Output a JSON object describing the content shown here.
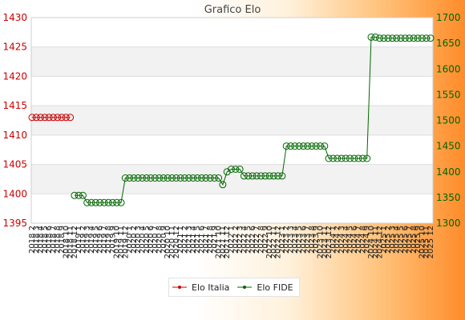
{
  "chart_data": {
    "type": "line",
    "title": "Grafico Elo",
    "y_left": {
      "ylim": [
        1395,
        1430
      ],
      "ticks": [
        "1395",
        "1400",
        "1405",
        "1410",
        "1415",
        "1420",
        "1425",
        "1430"
      ],
      "color": "#cc0000"
    },
    "y_right": {
      "ylim": [
        1300,
        1700
      ],
      "ticks": [
        "1300",
        "1350",
        "1400",
        "1450",
        "1500",
        "1550",
        "1600",
        "1650",
        "1700"
      ],
      "color": "#006600"
    },
    "x_ticks": [
      "2018 2",
      "2018 3",
      "2018 4",
      "2018 5",
      "2018 6",
      "2018 7",
      "2018 8",
      "2018 9",
      "2018 10",
      "2018 11",
      "2018 12",
      "2019 1",
      "2019 2",
      "2019 3",
      "2019 4",
      "2019 5",
      "2019 6",
      "2019 7",
      "2019 8",
      "2019 9",
      "2019 10",
      "2019 11",
      "2019 12",
      "2020 1",
      "2020 2",
      "2020 3",
      "2020 4",
      "2020 5",
      "2020 6",
      "2020 7",
      "2020 8",
      "2020 9",
      "2020 10",
      "2020 11",
      "2020 12",
      "2021 1",
      "2021 2",
      "2021 3",
      "2021 4",
      "2021 5",
      "2021 6",
      "2021 7",
      "2021 8",
      "2021 9",
      "2021 10",
      "2021 11",
      "2021 12",
      "2022 1",
      "2022 2",
      "2022 3",
      "2022 4",
      "2022 5",
      "2022 6",
      "2022 7",
      "2022 8",
      "2022 9",
      "2022 10",
      "2022 11",
      "2022 12",
      "2023 1",
      "2023 2",
      "2023 3",
      "2023 4",
      "2023 5",
      "2023 6",
      "2023 7",
      "2023 8",
      "2023 9",
      "2023 10",
      "2023 11",
      "2023 12",
      "2024 1",
      "2024 2",
      "2024 3",
      "2024 4",
      "2024 5",
      "2024 6",
      "2024 7",
      "2024 8",
      "2024 9",
      "2024 10",
      "2024 11",
      "2024 12",
      "2025 1",
      "2025 2",
      "2025 3",
      "2025 4",
      "2025 5",
      "2025 6",
      "2025 7",
      "2025 8",
      "2025 9",
      "2025 10",
      "2025 11",
      "2025 12"
    ],
    "series": [
      {
        "name": "Elo Italia",
        "axis": "left",
        "color": "#cc0000",
        "points": [
          [
            0,
            1413
          ],
          [
            1,
            1413
          ],
          [
            2,
            1413
          ],
          [
            3,
            1413
          ],
          [
            4,
            1413
          ],
          [
            5,
            1413
          ],
          [
            6,
            1413
          ],
          [
            7,
            1413
          ],
          [
            8,
            1413
          ],
          [
            9,
            1413
          ]
        ]
      },
      {
        "name": "Elo FIDE",
        "axis": "right",
        "color": "#006600",
        "points": [
          [
            10,
            1354
          ],
          [
            11,
            1354
          ],
          [
            12,
            1354
          ],
          [
            13,
            1340
          ],
          [
            14,
            1340
          ],
          [
            15,
            1340
          ],
          [
            16,
            1340
          ],
          [
            17,
            1340
          ],
          [
            18,
            1340
          ],
          [
            19,
            1340
          ],
          [
            20,
            1340
          ],
          [
            21,
            1340
          ],
          [
            22,
            1388
          ],
          [
            23,
            1388
          ],
          [
            24,
            1388
          ],
          [
            25,
            1388
          ],
          [
            26,
            1388
          ],
          [
            27,
            1388
          ],
          [
            28,
            1388
          ],
          [
            29,
            1388
          ],
          [
            30,
            1388
          ],
          [
            31,
            1388
          ],
          [
            32,
            1388
          ],
          [
            33,
            1388
          ],
          [
            34,
            1388
          ],
          [
            35,
            1388
          ],
          [
            36,
            1388
          ],
          [
            37,
            1388
          ],
          [
            38,
            1388
          ],
          [
            39,
            1388
          ],
          [
            40,
            1388
          ],
          [
            41,
            1388
          ],
          [
            42,
            1388
          ],
          [
            43,
            1388
          ],
          [
            44,
            1388
          ],
          [
            45,
            1375
          ],
          [
            46,
            1400
          ],
          [
            47,
            1405
          ],
          [
            48,
            1405
          ],
          [
            49,
            1405
          ],
          [
            50,
            1392
          ],
          [
            51,
            1392
          ],
          [
            52,
            1392
          ],
          [
            53,
            1392
          ],
          [
            54,
            1392
          ],
          [
            55,
            1392
          ],
          [
            56,
            1392
          ],
          [
            57,
            1392
          ],
          [
            58,
            1392
          ],
          [
            59,
            1392
          ],
          [
            60,
            1450
          ],
          [
            61,
            1450
          ],
          [
            62,
            1450
          ],
          [
            63,
            1450
          ],
          [
            64,
            1450
          ],
          [
            65,
            1450
          ],
          [
            66,
            1450
          ],
          [
            67,
            1450
          ],
          [
            68,
            1450
          ],
          [
            69,
            1450
          ],
          [
            70,
            1426
          ],
          [
            71,
            1426
          ],
          [
            72,
            1426
          ],
          [
            73,
            1426
          ],
          [
            74,
            1426
          ],
          [
            75,
            1426
          ],
          [
            76,
            1426
          ],
          [
            77,
            1426
          ],
          [
            78,
            1426
          ],
          [
            79,
            1426
          ],
          [
            80,
            1662
          ],
          [
            81,
            1662
          ],
          [
            82,
            1660
          ],
          [
            83,
            1660
          ],
          [
            84,
            1660
          ],
          [
            85,
            1660
          ],
          [
            86,
            1660
          ],
          [
            87,
            1660
          ],
          [
            88,
            1660
          ],
          [
            89,
            1660
          ],
          [
            90,
            1660
          ],
          [
            91,
            1660
          ],
          [
            92,
            1660
          ],
          [
            93,
            1660
          ],
          [
            94,
            1660
          ]
        ]
      }
    ],
    "legend": "bottom",
    "grid": true
  }
}
